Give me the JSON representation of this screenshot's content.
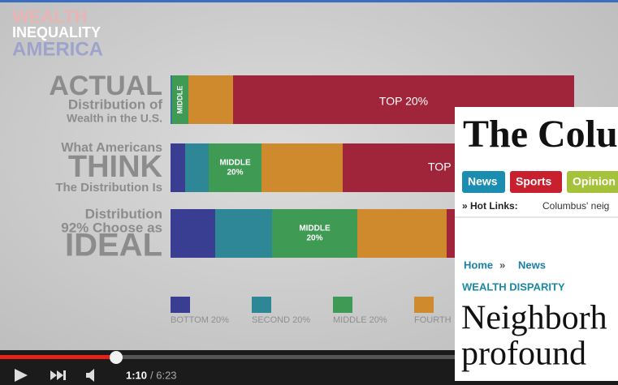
{
  "video": {
    "title": [
      "WEALTH",
      "INEQUALITY",
      "AMERICA"
    ],
    "rows": [
      {
        "label": [
          "ACTUAL",
          "Distribution of",
          "Wealth in the U.S."
        ],
        "segments": [
          0.1,
          0.3,
          4,
          11,
          84
        ],
        "middle_label": [
          "MIDDLE"
        ],
        "top_label": "TOP 20%"
      },
      {
        "label": [
          "What Americans",
          "THINK",
          "The Distribution Is"
        ],
        "segments": [
          3.6,
          5.8,
          13,
          20,
          58
        ],
        "middle_label": [
          "MIDDLE",
          "20%"
        ],
        "top_label": "TOP"
      },
      {
        "label": [
          "Distribution",
          "92% Choose as",
          "IDEAL"
        ],
        "segments": [
          11,
          14,
          21,
          22,
          32
        ],
        "middle_label": [
          "MIDDLE",
          "20%"
        ]
      }
    ],
    "legend": [
      "BOTTOM 20%",
      "SECOND 20%",
      "MIDDLE 20%",
      "FOURTH"
    ],
    "colors": [
      "#3a3e92",
      "#2e8796",
      "#3f9a54",
      "#cf8a2e",
      "#a1253a"
    ],
    "time": {
      "current": "1:10",
      "total": "/ 6:23"
    }
  },
  "article": {
    "masthead": "The Colu",
    "nav": [
      "News",
      "Sports",
      "Opinion"
    ],
    "hot_links": {
      "label": "» Hot Links:",
      "text": "Columbus' neig"
    },
    "breadcrumb": [
      "Home",
      "»",
      "News"
    ],
    "kicker": "WEALTH DISPARITY",
    "headline": [
      "Neighborh",
      "profound"
    ]
  }
}
